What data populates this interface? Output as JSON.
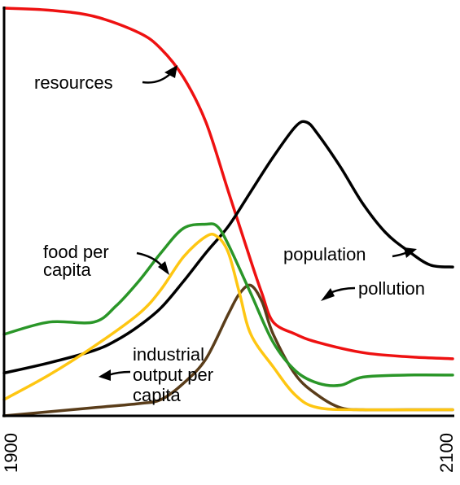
{
  "chart_data": {
    "type": "line",
    "title": "",
    "xlabel": "",
    "ylabel": "",
    "x_ticks": [
      "1900",
      "2100"
    ],
    "xlim": [
      1900,
      2100
    ],
    "ylim": [
      0,
      100
    ],
    "grid": false,
    "legend": "none",
    "series": [
      {
        "name": "resources",
        "color": "#ee1111",
        "points": [
          [
            1900,
            100
          ],
          [
            1920,
            99.5
          ],
          [
            1940,
            98
          ],
          [
            1960,
            94
          ],
          [
            1970,
            90
          ],
          [
            1980,
            83
          ],
          [
            1990,
            72
          ],
          [
            2000,
            55
          ],
          [
            2010,
            38
          ],
          [
            2015,
            30
          ],
          [
            2020,
            23
          ],
          [
            2030,
            20
          ],
          [
            2040,
            18
          ],
          [
            2060,
            15.5
          ],
          [
            2080,
            14.5
          ],
          [
            2100,
            14
          ]
        ]
      },
      {
        "name": "population",
        "color": "#000000",
        "points": [
          [
            1900,
            10.5
          ],
          [
            1920,
            13
          ],
          [
            1940,
            16
          ],
          [
            1950,
            18.5
          ],
          [
            1960,
            22
          ],
          [
            1970,
            26.5
          ],
          [
            1980,
            33
          ],
          [
            1990,
            40
          ],
          [
            2000,
            46.5
          ],
          [
            2010,
            55
          ],
          [
            2020,
            63.5
          ],
          [
            2030,
            71
          ],
          [
            2035,
            72
          ],
          [
            2040,
            69
          ],
          [
            2050,
            61
          ],
          [
            2060,
            52
          ],
          [
            2070,
            45
          ],
          [
            2080,
            40.5
          ],
          [
            2090,
            37
          ],
          [
            2100,
            36.5
          ]
        ]
      },
      {
        "name": "pollution",
        "color": "#5a3d1a",
        "points": [
          [
            1900,
            0
          ],
          [
            1920,
            1
          ],
          [
            1940,
            2
          ],
          [
            1960,
            3
          ],
          [
            1970,
            4
          ],
          [
            1980,
            8
          ],
          [
            1990,
            14
          ],
          [
            2000,
            25
          ],
          [
            2005,
            30
          ],
          [
            2010,
            32
          ],
          [
            2015,
            28
          ],
          [
            2020,
            20
          ],
          [
            2030,
            10
          ],
          [
            2040,
            5
          ],
          [
            2050,
            2
          ],
          [
            2060,
            1.5
          ],
          [
            2080,
            1.5
          ],
          [
            2100,
            1.5
          ]
        ]
      },
      {
        "name": "food per capita",
        "color": "#2a9628",
        "points": [
          [
            1900,
            20
          ],
          [
            1920,
            23
          ],
          [
            1940,
            23
          ],
          [
            1950,
            27
          ],
          [
            1960,
            33
          ],
          [
            1970,
            40
          ],
          [
            1980,
            46
          ],
          [
            1990,
            47
          ],
          [
            1995,
            46.5
          ],
          [
            2000,
            42
          ],
          [
            2010,
            30
          ],
          [
            2020,
            18
          ],
          [
            2030,
            11
          ],
          [
            2040,
            8
          ],
          [
            2050,
            7.5
          ],
          [
            2060,
            9.5
          ],
          [
            2080,
            10
          ],
          [
            2100,
            10
          ]
        ]
      },
      {
        "name": "industrial output per capita",
        "color": "#fec612",
        "points": [
          [
            1900,
            4
          ],
          [
            1920,
            10
          ],
          [
            1940,
            17
          ],
          [
            1960,
            25
          ],
          [
            1970,
            31
          ],
          [
            1980,
            39
          ],
          [
            1990,
            44
          ],
          [
            1995,
            44
          ],
          [
            2000,
            40
          ],
          [
            2005,
            30
          ],
          [
            2010,
            20
          ],
          [
            2020,
            12
          ],
          [
            2030,
            5
          ],
          [
            2040,
            2
          ],
          [
            2060,
            1.5
          ],
          [
            2100,
            1.5
          ]
        ]
      }
    ],
    "annotations": [
      {
        "text_lines": [
          "resources"
        ],
        "series": "resources"
      },
      {
        "text_lines": [
          "food per",
          "capita"
        ],
        "series": "food per capita"
      },
      {
        "text_lines": [
          "population"
        ],
        "series": "population"
      },
      {
        "text_lines": [
          "pollution"
        ],
        "series": "pollution"
      },
      {
        "text_lines": [
          "industrial",
          "output per",
          "capita"
        ],
        "series": "industrial output per capita"
      }
    ]
  }
}
